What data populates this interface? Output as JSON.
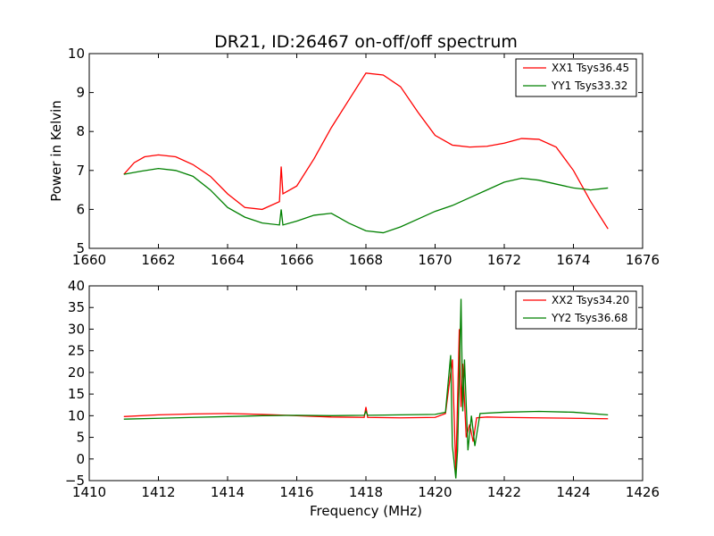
{
  "figure": {
    "title": "DR21, ID:26467 on-off/off spectrum",
    "ylabel": "Power in Kelvin",
    "xlabel": "Frequency (MHz)"
  },
  "chart_data": [
    {
      "type": "line",
      "title": "DR21, ID:26467 on-off/off spectrum",
      "xlabel": "",
      "ylabel": "Power in Kelvin",
      "xlim": [
        1660,
        1676
      ],
      "ylim": [
        5,
        10
      ],
      "xticks": [
        1660,
        1662,
        1664,
        1666,
        1668,
        1670,
        1672,
        1674,
        1676
      ],
      "yticks": [
        5,
        6,
        7,
        8,
        9,
        10
      ],
      "grid": false,
      "legend_position": "top-right",
      "series": [
        {
          "name": "XX1 Tsys36.45",
          "color": "#ff0000",
          "x": [
            1661.0,
            1661.3,
            1661.6,
            1662.0,
            1662.5,
            1663.0,
            1663.5,
            1664.0,
            1664.5,
            1665.0,
            1665.5,
            1665.55,
            1665.6,
            1666.0,
            1666.5,
            1667.0,
            1667.5,
            1668.0,
            1668.5,
            1669.0,
            1669.5,
            1670.0,
            1670.5,
            1671.0,
            1671.5,
            1672.0,
            1672.5,
            1673.0,
            1673.5,
            1674.0,
            1674.5,
            1675.0
          ],
          "y": [
            6.9,
            7.2,
            7.35,
            7.4,
            7.35,
            7.15,
            6.85,
            6.4,
            6.05,
            6.0,
            6.2,
            7.1,
            6.4,
            6.6,
            7.3,
            8.1,
            8.8,
            9.5,
            9.45,
            9.15,
            8.5,
            7.9,
            7.65,
            7.6,
            7.62,
            7.7,
            7.82,
            7.8,
            7.6,
            7.0,
            6.2,
            5.5
          ]
        },
        {
          "name": "YY1 Tsys33.32",
          "color": "#008000",
          "x": [
            1661.0,
            1661.5,
            1662.0,
            1662.5,
            1663.0,
            1663.5,
            1664.0,
            1664.5,
            1665.0,
            1665.5,
            1665.55,
            1665.6,
            1666.0,
            1666.5,
            1667.0,
            1667.5,
            1668.0,
            1668.5,
            1669.0,
            1669.5,
            1670.0,
            1670.5,
            1671.0,
            1671.5,
            1672.0,
            1672.5,
            1673.0,
            1673.5,
            1674.0,
            1674.5,
            1675.0
          ],
          "y": [
            6.9,
            6.98,
            7.05,
            7.0,
            6.85,
            6.5,
            6.05,
            5.8,
            5.65,
            5.6,
            6.0,
            5.6,
            5.7,
            5.85,
            5.9,
            5.65,
            5.45,
            5.4,
            5.55,
            5.75,
            5.95,
            6.1,
            6.3,
            6.5,
            6.7,
            6.8,
            6.75,
            6.65,
            6.55,
            6.5,
            6.55
          ]
        }
      ]
    },
    {
      "type": "line",
      "title": "",
      "xlabel": "Frequency (MHz)",
      "ylabel": "",
      "xlim": [
        1410,
        1426
      ],
      "ylim": [
        -5,
        40
      ],
      "xticks": [
        1410,
        1412,
        1414,
        1416,
        1418,
        1420,
        1422,
        1424,
        1426
      ],
      "yticks": [
        -5,
        0,
        5,
        10,
        15,
        20,
        25,
        30,
        35,
        40
      ],
      "grid": false,
      "legend_position": "top-right",
      "series": [
        {
          "name": "XX2 Tsys34.20",
          "color": "#ff0000",
          "x": [
            1411.0,
            1412.0,
            1413.0,
            1414.0,
            1415.0,
            1416.0,
            1417.0,
            1417.95,
            1418.0,
            1418.05,
            1419.0,
            1420.0,
            1420.3,
            1420.5,
            1420.6,
            1420.7,
            1420.75,
            1420.8,
            1420.9,
            1421.0,
            1421.1,
            1421.2,
            1421.5,
            1422.0,
            1423.0,
            1424.0,
            1425.0
          ],
          "y": [
            9.8,
            10.2,
            10.4,
            10.5,
            10.3,
            10.0,
            9.7,
            9.6,
            12.0,
            9.6,
            9.5,
            9.6,
            10.5,
            23.0,
            -3.0,
            30.0,
            12.0,
            22.0,
            5.0,
            8.0,
            4.0,
            9.5,
            9.7,
            9.6,
            9.5,
            9.4,
            9.3
          ]
        },
        {
          "name": "YY2 Tsys36.68",
          "color": "#008000",
          "x": [
            1411.0,
            1412.0,
            1413.0,
            1414.0,
            1415.0,
            1416.0,
            1417.0,
            1417.95,
            1418.0,
            1418.05,
            1419.0,
            1420.0,
            1420.3,
            1420.45,
            1420.5,
            1420.6,
            1420.65,
            1420.75,
            1420.8,
            1420.85,
            1420.95,
            1421.05,
            1421.15,
            1421.3,
            1422.0,
            1423.0,
            1424.0,
            1425.0
          ],
          "y": [
            9.2,
            9.4,
            9.6,
            9.8,
            10.0,
            10.1,
            10.0,
            10.1,
            11.0,
            10.1,
            10.2,
            10.3,
            10.8,
            24.0,
            3.0,
            -4.5,
            2.0,
            37.0,
            11.0,
            23.0,
            2.0,
            10.0,
            3.0,
            10.5,
            10.8,
            11.0,
            10.8,
            10.2
          ]
        }
      ]
    }
  ]
}
